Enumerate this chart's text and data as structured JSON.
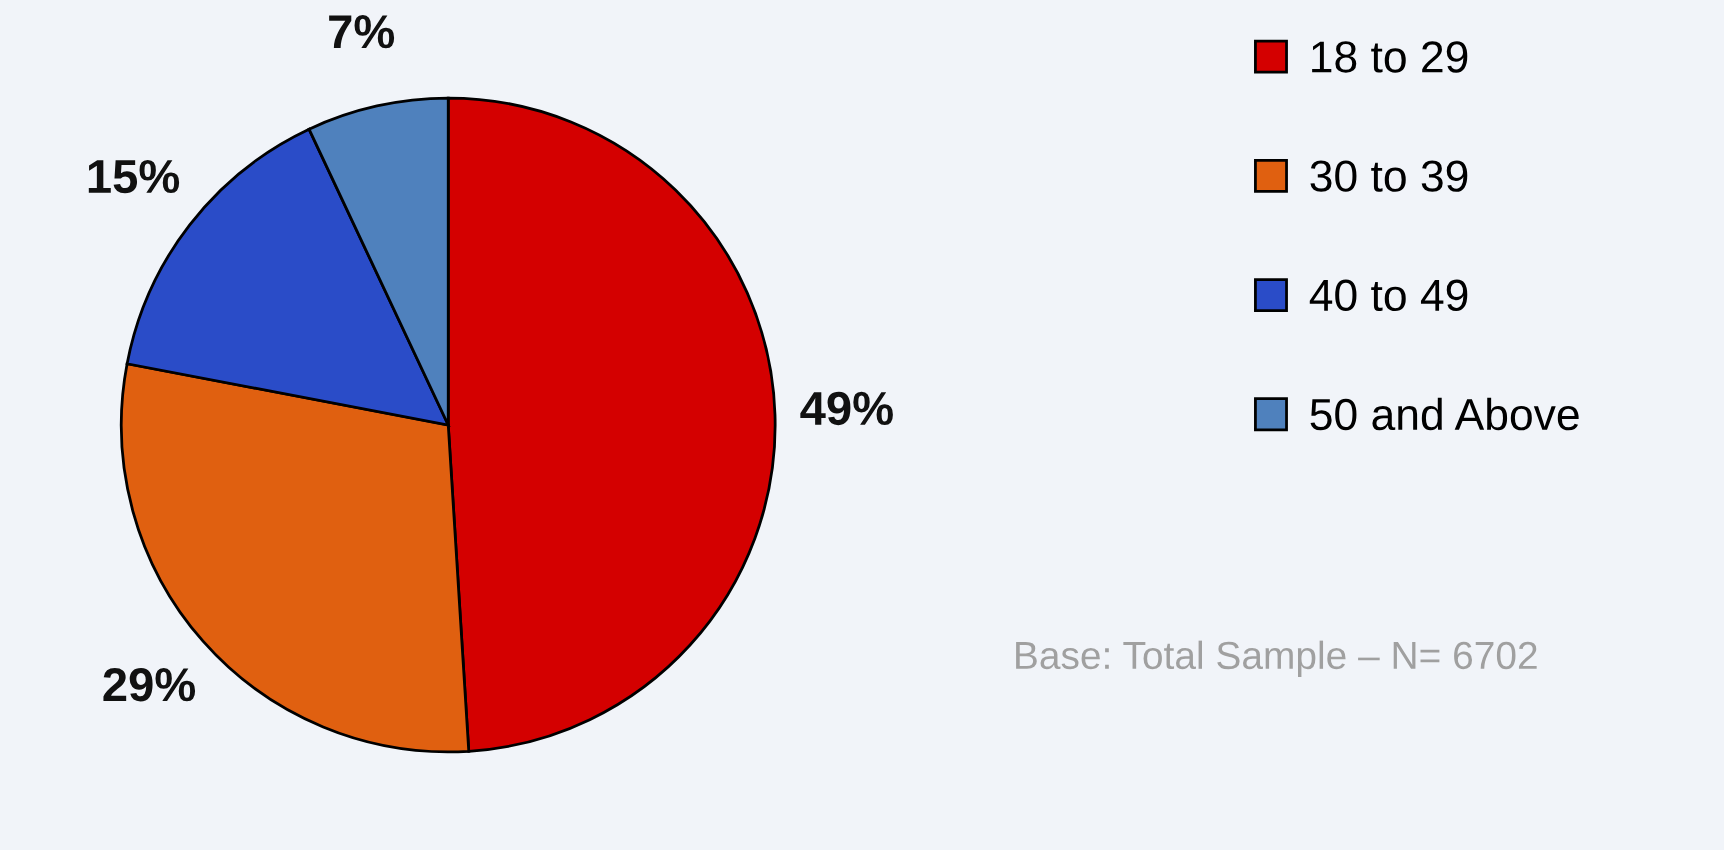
{
  "chart_data": {
    "type": "pie",
    "categories": [
      "18 to 29",
      "30 to 39",
      "40 to 49",
      "50 and Above"
    ],
    "values": [
      49,
      29,
      15,
      7
    ],
    "value_labels": [
      "49%",
      "29%",
      "15%",
      "7%"
    ],
    "colors": [
      "#d40000",
      "#e06010",
      "#2a4cc8",
      "#4f81bd"
    ],
    "legend": "right",
    "annotations": [
      "Base: Total Sample – N= 6702"
    ]
  }
}
